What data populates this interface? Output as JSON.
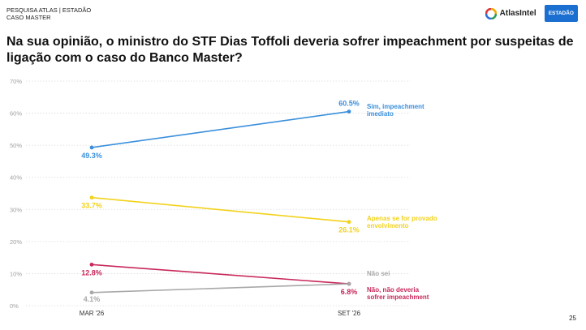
{
  "header": {
    "line1": "PESQUISA ATLAS | ESTADÃO",
    "line2": "CASO MASTER"
  },
  "brand": {
    "atlas_label": "AtlasIntel",
    "estadao_label": "ESTADÃO"
  },
  "title": "Na sua opinião, o ministro do STF Dias Toffoli deveria sofrer impeachment por suspeitas de ligação com o caso do Banco Master?",
  "page_number": "25",
  "chart_data": {
    "type": "line",
    "title": "Na sua opinião, o ministro do STF Dias Toffoli deveria sofrer impeachment por suspeitas de ligação com o caso do Banco Master?",
    "categories": [
      "MAR '26",
      "SET '26"
    ],
    "y_ticks": [
      "0%",
      "10%",
      "20%",
      "30%",
      "40%",
      "50%",
      "60%",
      "70%"
    ],
    "ylim": [
      0,
      70
    ],
    "grid": true,
    "series": [
      {
        "name": "Sim, impeachment imediato",
        "label_lines": [
          "Sim, impeachment",
          "imediato"
        ],
        "values": [
          49.3,
          60.5
        ],
        "value_labels": [
          "49.3%",
          "60.5%"
        ],
        "color": "#3a8fdc"
      },
      {
        "name": "Apenas se for provado envolvimento",
        "label_lines": [
          "Apenas se for provado",
          "envolvimento"
        ],
        "values": [
          33.7,
          26.1
        ],
        "value_labels": [
          "33.7%",
          "26.1%"
        ],
        "color": "#f2d21a"
      },
      {
        "name": "Não, não deveria sofrer impeachment",
        "label_lines": [
          "Não, não deveria",
          "sofrer impeachment"
        ],
        "values": [
          12.8,
          6.8
        ],
        "value_labels": [
          "12.8%",
          "6.8%"
        ],
        "color": "#c8285a"
      },
      {
        "name": "Não sei",
        "label_lines": [
          "Não sei"
        ],
        "values": [
          4.1,
          6.8
        ],
        "value_labels": [
          "4.1%",
          ""
        ],
        "color": "#a8a8a8"
      }
    ]
  },
  "colors": {
    "grid": "#dcdcdc",
    "tick": "#a0a0a0",
    "axis_label": "#333333",
    "estadao_bg": "#1a6fd0"
  }
}
